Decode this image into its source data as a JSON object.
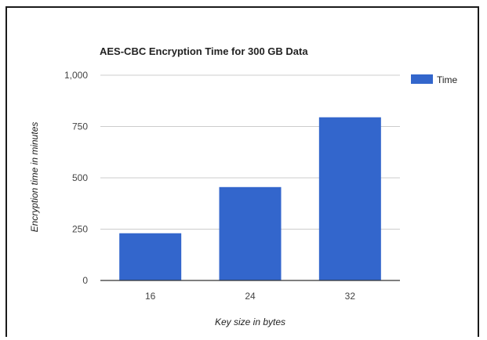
{
  "chart_data": {
    "type": "bar",
    "title": "AES-CBC Encryption Time for 300 GB Data",
    "xlabel": "Key size in bytes",
    "ylabel": "Encryption time in minutes",
    "categories": [
      "16",
      "24",
      "32"
    ],
    "series": [
      {
        "name": "Time",
        "values": [
          230,
          455,
          795
        ],
        "color": "#3366cc"
      }
    ],
    "ylim": [
      0,
      1000
    ],
    "yticks": [
      0,
      250,
      500,
      750,
      1000
    ],
    "ytick_labels": [
      "0",
      "250",
      "500",
      "750",
      "1,000"
    ],
    "grid": true,
    "legend_position": "right"
  }
}
